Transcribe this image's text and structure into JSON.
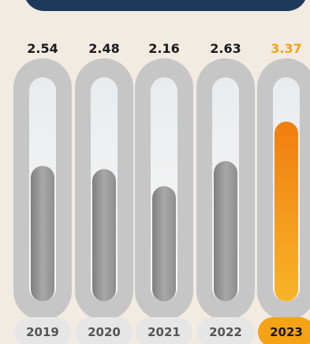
{
  "chart_data": {
    "type": "bar",
    "title": "",
    "xlabel": "",
    "ylabel": "",
    "categories": [
      "2019",
      "2020",
      "2021",
      "2022",
      "2023"
    ],
    "values": [
      2.54,
      2.48,
      2.16,
      2.63,
      3.37
    ],
    "value_labels": [
      "2.54",
      "2.48",
      "2.16",
      "2.63",
      "3.37"
    ],
    "ylim": [
      0,
      4.2
    ],
    "highlight_index": 4,
    "colors": {
      "background": "#f1ebe2",
      "banner": "#1e3a5a",
      "tube_outer": "#c6c6c6",
      "tube_inner": "#ececec",
      "bar": "#9a9a9a",
      "highlight": "#f5a316",
      "value_text": "#1a1a1a",
      "highlight_text": "#f5a316",
      "year_pill": "#e6e6e6",
      "year_text": "#555555",
      "year_highlight_text": "#1a1a1a"
    }
  }
}
